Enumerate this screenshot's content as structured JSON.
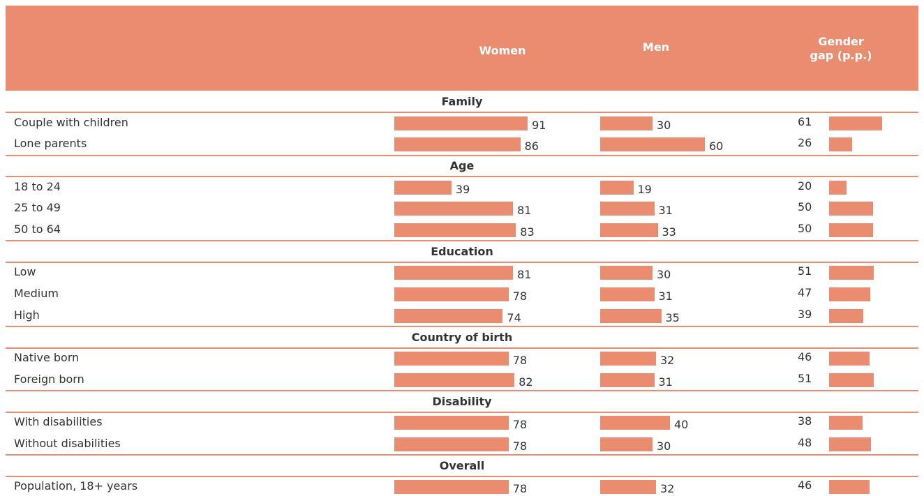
{
  "color": "#EA8C6F",
  "header": {
    "women": "Women",
    "men": "Men",
    "gap": "Gender gap (p.p.)"
  },
  "groups": [
    {
      "title": "Family",
      "rows": [
        {
          "label": "Couple with children",
          "women": 91,
          "men": 30,
          "gap": 61
        },
        {
          "label": "Lone parents",
          "women": 86,
          "men": 60,
          "gap": 26
        }
      ]
    },
    {
      "title": "Age",
      "rows": [
        {
          "label": "18 to 24",
          "women": 39,
          "men": 19,
          "gap": 20
        },
        {
          "label": "25 to 49",
          "women": 81,
          "men": 31,
          "gap": 50
        },
        {
          "label": "50 to 64",
          "women": 83,
          "men": 33,
          "gap": 50
        }
      ]
    },
    {
      "title": "Education",
      "rows": [
        {
          "label": "Low",
          "women": 81,
          "men": 30,
          "gap": 51
        },
        {
          "label": "Medium",
          "women": 78,
          "men": 31,
          "gap": 47
        },
        {
          "label": "High",
          "women": 74,
          "men": 35,
          "gap": 39
        }
      ]
    },
    {
      "title": "Country of birth",
      "rows": [
        {
          "label": "Native born",
          "women": 78,
          "men": 32,
          "gap": 46
        },
        {
          "label": "Foreign born",
          "women": 82,
          "men": 31,
          "gap": 51
        }
      ]
    },
    {
      "title": "Disability",
      "rows": [
        {
          "label": "With disabilities",
          "women": 78,
          "men": 40,
          "gap": 38
        },
        {
          "label": "Without disabilities",
          "women": 78,
          "men": 30,
          "gap": 48
        }
      ]
    },
    {
      "title": "Overall",
      "rows": [
        {
          "label": "Population, 18+ years",
          "women": 78,
          "men": 32,
          "gap": 46
        }
      ]
    }
  ]
}
